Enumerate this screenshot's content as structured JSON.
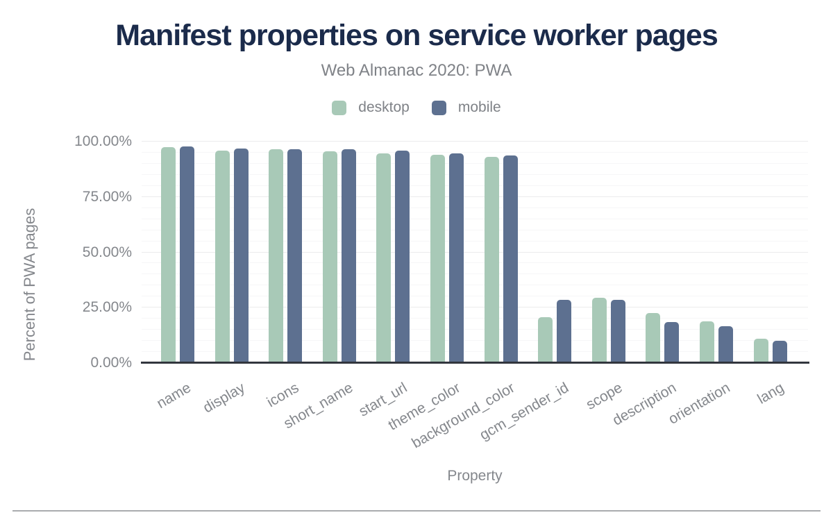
{
  "chart_data": {
    "type": "bar",
    "title": "Manifest properties on service worker pages",
    "subtitle": "Web Almanac 2020: PWA",
    "xlabel": "Property",
    "ylabel": "Percent of PWA pages",
    "ylim": [
      0,
      100
    ],
    "legend_position": "top",
    "grid": {
      "minor_step": 5,
      "major_step": 25,
      "horizontal": true
    },
    "y_ticks": [
      {
        "value": 0,
        "label": "0.00%"
      },
      {
        "value": 25,
        "label": "25.00%"
      },
      {
        "value": 50,
        "label": "50.00%"
      },
      {
        "value": 75,
        "label": "75.00%"
      },
      {
        "value": 100,
        "label": "100.00%"
      }
    ],
    "categories": [
      "name",
      "display",
      "icons",
      "short_name",
      "start_url",
      "theme_color",
      "background_color",
      "gcm_sender_id",
      "scope",
      "description",
      "orientation",
      "lang"
    ],
    "series": [
      {
        "name": "desktop",
        "color": "#a8c9b7",
        "values": [
          97.5,
          96.0,
          96.4,
          95.5,
          94.7,
          93.9,
          93.2,
          20.7,
          29.5,
          22.6,
          18.7,
          11.1
        ]
      },
      {
        "name": "mobile",
        "color": "#5d7090",
        "values": [
          97.8,
          97.0,
          96.6,
          96.4,
          95.8,
          94.7,
          93.7,
          28.4,
          28.6,
          18.5,
          16.6,
          10.1
        ]
      }
    ],
    "colors": {
      "title_text": "#1b2b4b",
      "axis_text": "#84878c",
      "subtitle_text": "#7f8287",
      "baseline": "#32363e"
    }
  }
}
